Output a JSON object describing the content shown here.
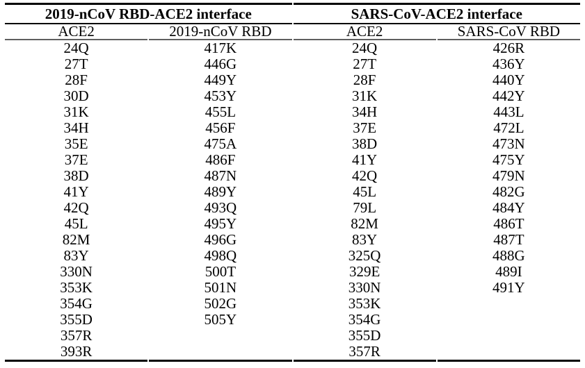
{
  "table": {
    "sections": [
      {
        "title": "2019-nCoV RBD-ACE2 interface",
        "columns": [
          "ACE2",
          "2019-nCoV RBD"
        ]
      },
      {
        "title": "SARS-CoV-ACE2 interface",
        "columns": [
          "ACE2",
          "SARS-CoV RBD"
        ]
      }
    ],
    "rows": [
      [
        "24Q",
        "417K",
        "24Q",
        "426R"
      ],
      [
        "27T",
        "446G",
        "27T",
        "436Y"
      ],
      [
        "28F",
        "449Y",
        "28F",
        "440Y"
      ],
      [
        "30D",
        "453Y",
        "31K",
        "442Y"
      ],
      [
        "31K",
        "455L",
        "34H",
        "443L"
      ],
      [
        "34H",
        "456F",
        "37E",
        "472L"
      ],
      [
        "35E",
        "475A",
        "38D",
        "473N"
      ],
      [
        "37E",
        "486F",
        "41Y",
        "475Y"
      ],
      [
        "38D",
        "487N",
        "42Q",
        "479N"
      ],
      [
        "41Y",
        "489Y",
        "45L",
        "482G"
      ],
      [
        "42Q",
        "493Q",
        "79L",
        "484Y"
      ],
      [
        "45L",
        "495Y",
        "82M",
        "486T"
      ],
      [
        "82M",
        "496G",
        "83Y",
        "487T"
      ],
      [
        "83Y",
        "498Q",
        "325Q",
        "488G"
      ],
      [
        "330N",
        "500T",
        "329E",
        "489I"
      ],
      [
        "353K",
        "501N",
        "330N",
        "491Y"
      ],
      [
        "354G",
        "502G",
        "353K",
        ""
      ],
      [
        "355D",
        "505Y",
        "354G",
        ""
      ],
      [
        "357R",
        "",
        "355D",
        ""
      ],
      [
        "393R",
        "",
        "357R",
        ""
      ]
    ],
    "colors": {
      "rule_black": "#000000",
      "rule_grey": "#5f5f5f",
      "background": "#ffffff",
      "text": "#000000"
    }
  }
}
